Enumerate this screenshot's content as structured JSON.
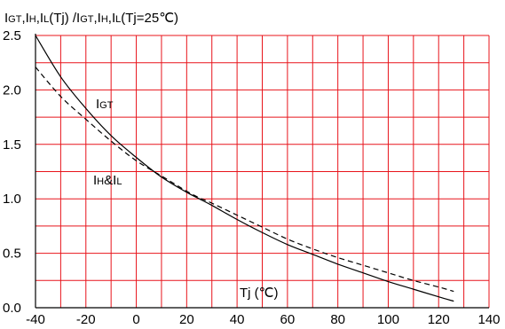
{
  "chart_data": {
    "type": "line",
    "title_parts": [
      {
        "t": "I",
        "sub": false
      },
      {
        "t": "GT",
        "sub": true
      },
      {
        "t": ",I",
        "sub": false
      },
      {
        "t": "H",
        "sub": true
      },
      {
        "t": ",I",
        "sub": false
      },
      {
        "t": "L",
        "sub": true
      },
      {
        "t": "(Tj) /I",
        "sub": false
      },
      {
        "t": "GT",
        "sub": true
      },
      {
        "t": ",I",
        "sub": false
      },
      {
        "t": "H",
        "sub": true
      },
      {
        "t": ",I",
        "sub": false
      },
      {
        "t": "L",
        "sub": true
      },
      {
        "t": "(Tj=25℃)",
        "sub": false
      }
    ],
    "xlabel": "Tj (℃)",
    "xlim": [
      -40,
      140
    ],
    "ylim": [
      0,
      2.5
    ],
    "x_ticks": [
      -40,
      -20,
      0,
      20,
      40,
      60,
      80,
      100,
      120,
      140
    ],
    "y_ticks": [
      "0.0",
      "0.5",
      "1.0",
      "1.5",
      "2.0",
      "2.5"
    ],
    "grid_x_step": 10,
    "grid_y_step": 0.25,
    "grid": true,
    "grid_color": "#e8141b",
    "series": [
      {
        "name_parts": [
          {
            "t": "I",
            "sub": false
          },
          {
            "t": "GT",
            "sub": true
          }
        ],
        "style": "solid",
        "x": [
          -40,
          -30,
          -20,
          -10,
          0,
          10,
          20,
          25,
          30,
          40,
          50,
          60,
          70,
          80,
          90,
          100,
          110,
          120,
          126
        ],
        "y": [
          2.5,
          2.12,
          1.83,
          1.58,
          1.38,
          1.2,
          1.06,
          1.0,
          0.94,
          0.81,
          0.69,
          0.58,
          0.49,
          0.4,
          0.32,
          0.24,
          0.17,
          0.1,
          0.06
        ]
      },
      {
        "name_parts": [
          {
            "t": "I",
            "sub": false
          },
          {
            "t": "H",
            "sub": true
          },
          {
            "t": "&I",
            "sub": false
          },
          {
            "t": "L",
            "sub": true
          }
        ],
        "style": "dashed",
        "x": [
          -40,
          -30,
          -20,
          -10,
          0,
          10,
          20,
          25,
          30,
          40,
          50,
          60,
          70,
          80,
          90,
          100,
          110,
          120,
          126
        ],
        "y": [
          2.21,
          1.94,
          1.73,
          1.53,
          1.35,
          1.21,
          1.07,
          1.01,
          0.96,
          0.85,
          0.74,
          0.63,
          0.54,
          0.46,
          0.39,
          0.32,
          0.25,
          0.19,
          0.15
        ]
      }
    ]
  }
}
